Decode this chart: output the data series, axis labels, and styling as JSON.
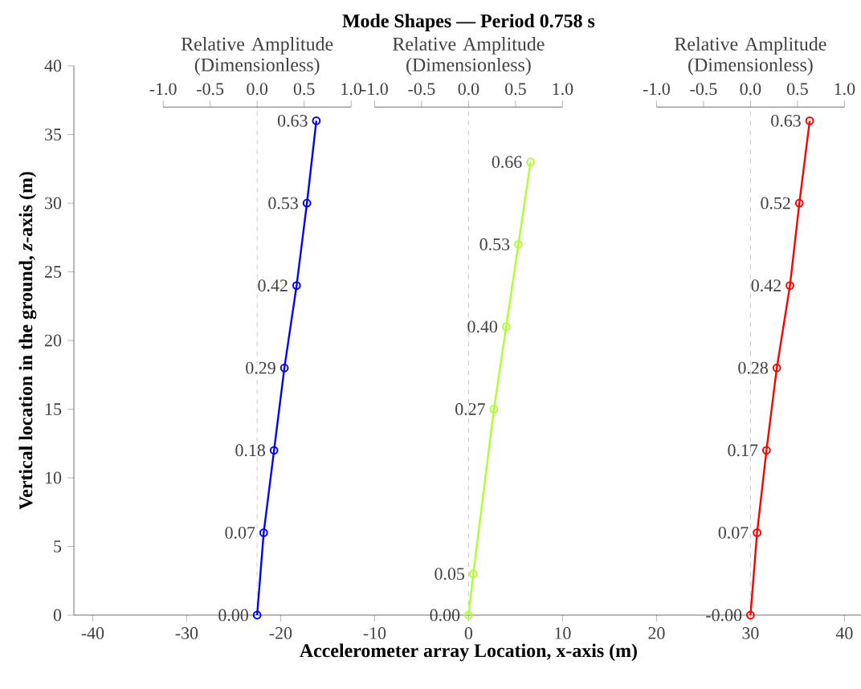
{
  "chart_data": [
    {
      "type": "line",
      "title": "Mode Shapes — Period 0.758 s",
      "xlabel": "Accelerometer array Location, x-axis (m)",
      "ylabel": "Vertical location in the ground, *z*-axis (m)",
      "xlim": [
        -42,
        42
      ],
      "xticks": [
        -40,
        -30,
        -20,
        -10,
        0,
        10,
        20,
        30,
        40
      ],
      "ylim": [
        0,
        40
      ],
      "yticks": [
        0,
        5,
        10,
        15,
        20,
        25,
        30,
        35,
        40
      ]
    },
    {
      "type": "line",
      "orientation": "horizontal",
      "xlabel": "Relative Amplitude (Dimensionless)",
      "xlim": [
        -1,
        1
      ],
      "xticks": [
        {
          "value": -1,
          "label": "-1.0"
        },
        {
          "value": -0.5,
          "label": "-0.5"
        },
        {
          "value": 0,
          "label": "0.0"
        },
        {
          "value": 0.5,
          "label": "0.5"
        },
        {
          "value": 1,
          "label": "1.0"
        }
      ],
      "tick_labels": "x",
      "marker": "circle",
      "ref_lines": [
        {
          "axis": "x",
          "value": 0,
          "color": "#bbbbbb",
          "line_style": "dashed"
        }
      ],
      "ylim": [
        0,
        40
      ],
      "yticks": [
        0,
        5,
        10,
        15,
        20,
        25,
        30,
        35,
        40
      ],
      "line_style": "solid",
      "series": [
        {
          "color": "#0000ff",
          "x": [
            0,
            6,
            12,
            18,
            24,
            30,
            36
          ],
          "values": [
            0.0,
            0.07,
            0.18,
            0.29,
            0.42,
            0.53,
            0.63
          ],
          "value_labels": [
            "0.00",
            "0.07",
            "0.18",
            "0.29",
            "0.42",
            "0.53",
            "0.63"
          ]
        }
      ]
    },
    {
      "type": "line",
      "orientation": "horizontal",
      "xlabel": "Relative Amplitude (Dimensionless)",
      "xlim": [
        -1,
        1
      ],
      "xticks": [
        {
          "value": -1,
          "label": "-1.0"
        },
        {
          "value": -0.5,
          "label": "-0.5"
        },
        {
          "value": 0,
          "label": "0.0"
        },
        {
          "value": 0.5,
          "label": "0.5"
        },
        {
          "value": 1,
          "label": "1.0"
        }
      ],
      "tick_labels": "x",
      "marker": "circle",
      "ref_lines": [
        {
          "axis": "x",
          "value": 0,
          "color": "#bbbbbb",
          "line_style": "dashed"
        }
      ],
      "ylim": [
        0,
        40
      ],
      "yticks": [
        0,
        5,
        10,
        15,
        20,
        25,
        30,
        35,
        40
      ],
      "line_style": "solid",
      "series": [
        {
          "color": "#adff2f",
          "x": [
            0,
            3,
            15,
            21,
            27,
            33
          ],
          "values": [
            0.0,
            0.05,
            0.27,
            0.4,
            0.53,
            0.66
          ],
          "value_labels": [
            "0.00",
            "0.05",
            "0.27",
            "0.40",
            "0.53",
            "0.66"
          ]
        }
      ]
    },
    {
      "type": "line",
      "orientation": "horizontal",
      "xlabel": "Relative Amplitude (Dimensionless)",
      "xlim": [
        -1,
        1
      ],
      "xticks": [
        {
          "value": -1,
          "label": "-1.0"
        },
        {
          "value": -0.5,
          "label": "-0.5"
        },
        {
          "value": 0,
          "label": "0.0"
        },
        {
          "value": 0.5,
          "label": "0.5"
        },
        {
          "value": 1,
          "label": "1.0"
        }
      ],
      "tick_labels": "x",
      "marker": "circle",
      "ref_lines": [
        {
          "axis": "x",
          "value": 0,
          "color": "#bbbbbb",
          "line_style": "dashed"
        }
      ],
      "ylim": [
        0,
        40
      ],
      "yticks": [
        0,
        5,
        10,
        15,
        20,
        25,
        30,
        35,
        40
      ],
      "line_style": "solid",
      "series": [
        {
          "color": "#ff0000",
          "x": [
            0,
            6,
            12,
            18,
            24,
            30,
            36
          ],
          "values": [
            0.0,
            0.07,
            0.17,
            0.28,
            0.42,
            0.52,
            0.63
          ],
          "value_labels": [
            "-0.00",
            "0.07",
            "0.17",
            "0.28",
            "0.42",
            "0.52",
            "0.63"
          ]
        }
      ]
    }
  ]
}
